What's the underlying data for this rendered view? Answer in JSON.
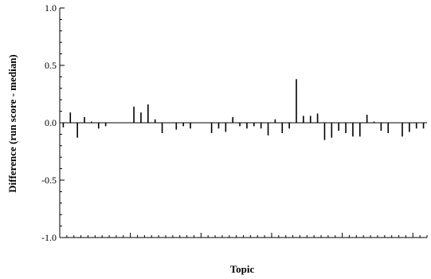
{
  "chart_data": {
    "type": "bar",
    "xlabel": "Topic",
    "ylabel": "Difference (run score - median)",
    "ylim": [
      -1.0,
      1.0
    ],
    "yticks": [
      "1.0",
      "0.5",
      "0.0",
      "-0.5",
      "-1.0"
    ],
    "grid": false,
    "bar_color": "#000000",
    "values": [
      -0.04,
      0.09,
      -0.13,
      0.05,
      0.01,
      -0.05,
      -0.03,
      0.0,
      0.0,
      0.0,
      0.14,
      0.09,
      0.16,
      0.03,
      -0.09,
      0.0,
      -0.06,
      -0.03,
      -0.05,
      0.0,
      0.0,
      -0.09,
      -0.05,
      -0.08,
      0.05,
      -0.03,
      -0.05,
      -0.03,
      -0.05,
      -0.11,
      0.03,
      -0.09,
      -0.05,
      0.38,
      0.06,
      0.06,
      0.08,
      -0.15,
      -0.13,
      -0.07,
      -0.09,
      -0.12,
      -0.12,
      0.07,
      0.01,
      -0.07,
      -0.09,
      0.0,
      -0.12,
      -0.08,
      -0.05,
      -0.05
    ]
  }
}
